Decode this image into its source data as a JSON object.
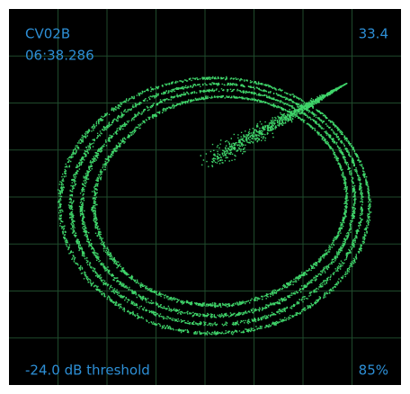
{
  "header": {
    "name": "CV02B",
    "time": "06:38.286",
    "value": "33.4"
  },
  "footer": {
    "threshold": "-24.0 dB threshold",
    "level": "85%"
  }
}
